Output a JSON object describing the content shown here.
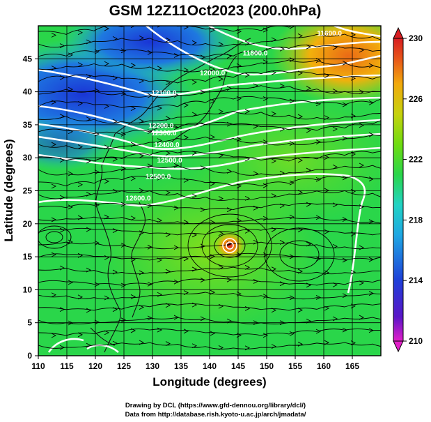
{
  "title": "GSM 12Z11Oct2023 (200.0hPa)",
  "map": {
    "xlabel": "Longitude (degrees)",
    "ylabel": "Latitude  (degrees)",
    "x_ticks": [
      "110",
      "115",
      "120",
      "125",
      "130",
      "135",
      "140",
      "145",
      "150",
      "155",
      "160",
      "165"
    ],
    "y_ticks": [
      "0",
      "5",
      "10",
      "15",
      "20",
      "25",
      "30",
      "35",
      "40",
      "45"
    ],
    "lon_range": [
      110,
      170
    ],
    "lat_range": [
      0,
      50
    ],
    "contour_labels": [
      {
        "text": "11600.0",
        "lon": 161,
        "lat": 48.5
      },
      {
        "text": "11800.0",
        "lon": 148,
        "lat": 45.5
      },
      {
        "text": "12000.0",
        "lon": 140.5,
        "lat": 42.5
      },
      {
        "text": "12100.0",
        "lon": 132,
        "lat": 39.5
      },
      {
        "text": "12200.0",
        "lon": 131.5,
        "lat": 34.5
      },
      {
        "text": "12300.0",
        "lon": 132,
        "lat": 33.4
      },
      {
        "text": "12400.0",
        "lon": 132.5,
        "lat": 31.6
      },
      {
        "text": "12500.0",
        "lon": 133,
        "lat": 29.3
      },
      {
        "text": "12500.0",
        "lon": 131,
        "lat": 26.8
      },
      {
        "text": "12600.0",
        "lon": 127.5,
        "lat": 23.5
      }
    ]
  },
  "colorbar": {
    "ticks": [
      "230",
      "226",
      "222",
      "218",
      "214",
      "210"
    ],
    "range": [
      210,
      230
    ],
    "colors": [
      "#e21fc9",
      "#5a16c8",
      "#1e3fd8",
      "#1ea7e3",
      "#21d3c4",
      "#2ad64a",
      "#6fdc10",
      "#c6d20c",
      "#f2a90c",
      "#e8581a",
      "#d81e22"
    ]
  },
  "credits": {
    "line1": "Drawing by DCL (https://www.gfd-dennou.org/library/dcl/)",
    "line2": "Data from http://database.rish.kyoto-u.ac.jp/arch/jmadata/"
  },
  "colors": {
    "cold": "#1e3fd8",
    "field": "#2ad64a",
    "warm": "#f2a90c",
    "contour": "#ffffff",
    "streamline": "#000000"
  }
}
